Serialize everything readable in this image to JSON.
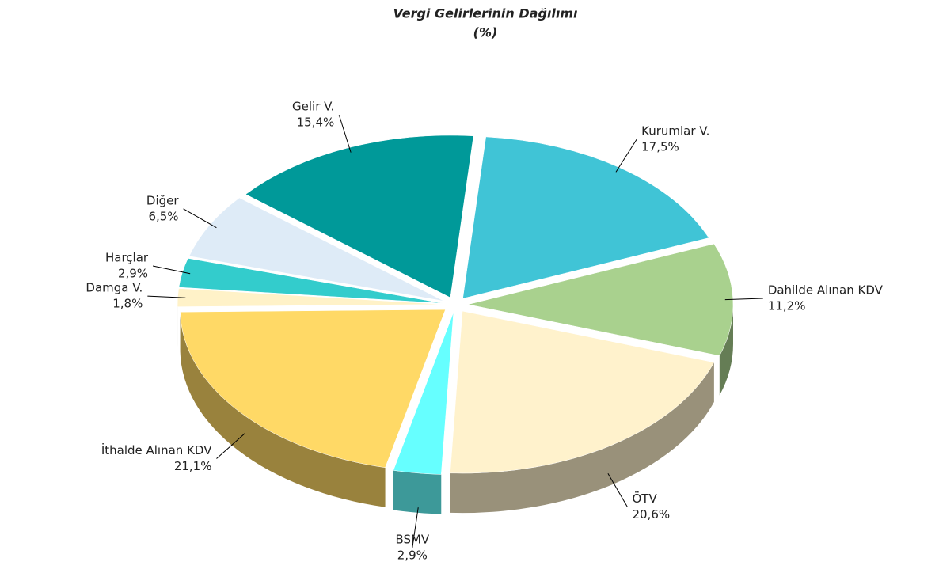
{
  "chart_data": {
    "type": "pie",
    "title": "Vergi Gelirlerinin Dağılımı",
    "subtitle": "(%)",
    "categories": [
      "Gelir V.",
      "Kurumlar V.",
      "Dahilde Alınan KDV",
      "ÖTV",
      "BSMV",
      "İthalde Alınan KDV",
      "Damga V.",
      "Harçlar",
      "Diğer"
    ],
    "values": [
      15.4,
      17.5,
      11.2,
      20.6,
      2.9,
      21.1,
      1.8,
      2.9,
      6.5
    ],
    "value_labels": [
      "15,4%",
      "17,5%",
      "11,2%",
      "20,6%",
      "2,9%",
      "21,1%",
      "1,8%",
      "2,9%",
      "6,5%"
    ],
    "colors": [
      "#009999",
      "#40c4d6",
      "#a9d18e",
      "#fff2cc",
      "#66ffff",
      "#ffd966",
      "#fff2c8",
      "#33cccc",
      "#deebf7"
    ]
  }
}
